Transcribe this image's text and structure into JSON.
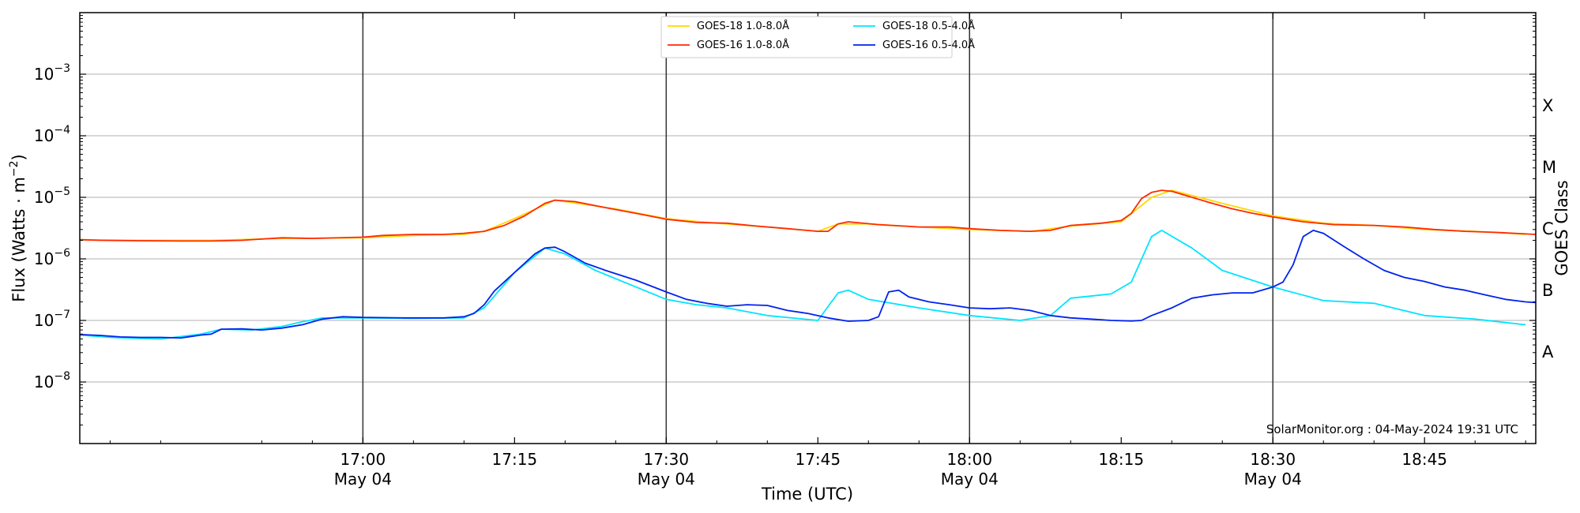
{
  "chart_data": {
    "type": "line",
    "xlabel": "Time (UTC)",
    "ylabel": "Flux (Watts · m",
    "ylabel_exp": "−2",
    "ylabel_close": ")",
    "y_scale": "log",
    "ylim": [
      1e-09,
      0.01
    ],
    "xlim": [
      "16:32",
      "18:56"
    ],
    "grid": "horizontal at decades",
    "legend_position": "top-center",
    "right_axis_label": "GOES Class",
    "goes_classes": [
      "X",
      "M",
      "C",
      "B",
      "A"
    ],
    "credit": "SolarMonitor.org : 04-May-2024 19:31 UTC",
    "x_ticks": [
      {
        "time": "17:00",
        "date": "May 04"
      },
      {
        "time": "17:15",
        "date": ""
      },
      {
        "time": "17:30",
        "date": "May 04"
      },
      {
        "time": "17:45",
        "date": ""
      },
      {
        "time": "18:00",
        "date": "May 04"
      },
      {
        "time": "18:15",
        "date": ""
      },
      {
        "time": "18:30",
        "date": "May 04"
      },
      {
        "time": "18:45",
        "date": ""
      }
    ],
    "y_ticks": [
      {
        "base": "10",
        "exp": "−8"
      },
      {
        "base": "10",
        "exp": "−7"
      },
      {
        "base": "10",
        "exp": "−6"
      },
      {
        "base": "10",
        "exp": "−5"
      },
      {
        "base": "10",
        "exp": "−4"
      },
      {
        "base": "10",
        "exp": "−3"
      }
    ],
    "series": [
      {
        "name": "GOES-18 1.0-8.0Å",
        "color": "#ffd700",
        "points": [
          [
            "16:32",
            2.05e-06
          ],
          [
            "16:38",
            2e-06
          ],
          [
            "16:45",
            2e-06
          ],
          [
            "16:52",
            2.15e-06
          ],
          [
            "17:00",
            2.2e-06
          ],
          [
            "17:05",
            2.4e-06
          ],
          [
            "17:10",
            2.5e-06
          ],
          [
            "17:12",
            2.8e-06
          ],
          [
            "17:15",
            4.5e-06
          ],
          [
            "17:19",
            9e-06
          ],
          [
            "17:25",
            6.5e-06
          ],
          [
            "17:30",
            4.5e-06
          ],
          [
            "17:35",
            3.8e-06
          ],
          [
            "17:40",
            3.3e-06
          ],
          [
            "17:45",
            2.8e-06
          ],
          [
            "17:47",
            3.7e-06
          ],
          [
            "17:50",
            3.7e-06
          ],
          [
            "17:55",
            3.3e-06
          ],
          [
            "18:00",
            3e-06
          ],
          [
            "18:06",
            2.8e-06
          ],
          [
            "18:10",
            3.4e-06
          ],
          [
            "18:15",
            4e-06
          ],
          [
            "18:18",
            1e-05
          ],
          [
            "18:20",
            1.3e-05
          ],
          [
            "18:25",
            8e-06
          ],
          [
            "18:30",
            5e-06
          ],
          [
            "18:35",
            3.8e-06
          ],
          [
            "18:40",
            3.5e-06
          ],
          [
            "18:45",
            3e-06
          ],
          [
            "18:50",
            2.8e-06
          ],
          [
            "18:55",
            2.5e-06
          ]
        ]
      },
      {
        "name": "GOES-16 1.0-8.0Å",
        "color": "#ff2a00",
        "points": [
          [
            "16:32",
            2.05e-06
          ],
          [
            "16:34",
            2e-06
          ],
          [
            "16:38",
            1.97e-06
          ],
          [
            "16:42",
            1.95e-06
          ],
          [
            "16:45",
            1.95e-06
          ],
          [
            "16:48",
            2e-06
          ],
          [
            "16:50",
            2.1e-06
          ],
          [
            "16:52",
            2.2e-06
          ],
          [
            "16:55",
            2.15e-06
          ],
          [
            "17:00",
            2.25e-06
          ],
          [
            "17:02",
            2.4e-06
          ],
          [
            "17:05",
            2.5e-06
          ],
          [
            "17:08",
            2.5e-06
          ],
          [
            "17:10",
            2.6e-06
          ],
          [
            "17:12",
            2.8e-06
          ],
          [
            "17:14",
            3.5e-06
          ],
          [
            "17:16",
            5e-06
          ],
          [
            "17:18",
            8e-06
          ],
          [
            "17:19",
            9e-06
          ],
          [
            "17:21",
            8.5e-06
          ],
          [
            "17:24",
            6.8e-06
          ],
          [
            "17:27",
            5.5e-06
          ],
          [
            "17:30",
            4.4e-06
          ],
          [
            "17:33",
            3.9e-06
          ],
          [
            "17:36",
            3.8e-06
          ],
          [
            "17:39",
            3.4e-06
          ],
          [
            "17:42",
            3.1e-06
          ],
          [
            "17:45",
            2.8e-06
          ],
          [
            "17:46",
            2.8e-06
          ],
          [
            "17:47",
            3.7e-06
          ],
          [
            "17:48",
            4e-06
          ],
          [
            "17:51",
            3.6e-06
          ],
          [
            "17:55",
            3.3e-06
          ],
          [
            "17:58",
            3.3e-06
          ],
          [
            "18:00",
            3.1e-06
          ],
          [
            "18:03",
            2.9e-06
          ],
          [
            "18:06",
            2.8e-06
          ],
          [
            "18:08",
            2.9e-06
          ],
          [
            "18:10",
            3.5e-06
          ],
          [
            "18:13",
            3.8e-06
          ],
          [
            "18:15",
            4.2e-06
          ],
          [
            "18:16",
            5.5e-06
          ],
          [
            "18:17",
            9.5e-06
          ],
          [
            "18:18",
            1.2e-05
          ],
          [
            "18:19",
            1.3e-05
          ],
          [
            "18:20",
            1.25e-05
          ],
          [
            "18:22",
            1e-05
          ],
          [
            "18:24",
            8e-06
          ],
          [
            "18:26",
            6.5e-06
          ],
          [
            "18:28",
            5.5e-06
          ],
          [
            "18:30",
            4.8e-06
          ],
          [
            "18:33",
            4e-06
          ],
          [
            "18:36",
            3.6e-06
          ],
          [
            "18:40",
            3.5e-06
          ],
          [
            "18:43",
            3.3e-06
          ],
          [
            "18:46",
            3e-06
          ],
          [
            "18:49",
            2.8e-06
          ],
          [
            "18:52",
            2.7e-06
          ],
          [
            "18:56",
            2.5e-06
          ]
        ]
      },
      {
        "name": "GOES-18 0.5-4.0Å",
        "color": "#00e5ff",
        "points": [
          [
            "16:32",
            5.8e-08
          ],
          [
            "16:35",
            5.3e-08
          ],
          [
            "16:38",
            5.1e-08
          ],
          [
            "16:40",
            5e-08
          ],
          [
            "16:44",
            6e-08
          ],
          [
            "16:46",
            7.2e-08
          ],
          [
            "16:49",
            7e-08
          ],
          [
            "16:52",
            8e-08
          ],
          [
            "16:54",
            9.5e-08
          ],
          [
            "16:56",
            1.1e-07
          ],
          [
            "17:00",
            1.1e-07
          ],
          [
            "17:05",
            1.08e-07
          ],
          [
            "17:10",
            1.1e-07
          ],
          [
            "17:12",
            1.6e-07
          ],
          [
            "17:15",
            6e-07
          ],
          [
            "17:18",
            1.5e-06
          ],
          [
            "17:20",
            1.2e-06
          ],
          [
            "17:23",
            6.5e-07
          ],
          [
            "17:27",
            3.5e-07
          ],
          [
            "17:30",
            2.2e-07
          ],
          [
            "17:33",
            1.8e-07
          ],
          [
            "17:36",
            1.6e-07
          ],
          [
            "17:40",
            1.2e-07
          ],
          [
            "17:45",
            1e-07
          ],
          [
            "17:47",
            2.8e-07
          ],
          [
            "17:48",
            3.1e-07
          ],
          [
            "17:50",
            2.2e-07
          ],
          [
            "17:55",
            1.6e-07
          ],
          [
            "18:00",
            1.2e-07
          ],
          [
            "18:05",
            1e-07
          ],
          [
            "18:08",
            1.2e-07
          ],
          [
            "18:10",
            2.3e-07
          ],
          [
            "18:14",
            2.7e-07
          ],
          [
            "18:16",
            4.2e-07
          ],
          [
            "18:18",
            2.3e-06
          ],
          [
            "18:19",
            2.9e-06
          ],
          [
            "18:22",
            1.5e-06
          ],
          [
            "18:25",
            6.5e-07
          ],
          [
            "18:30",
            3.5e-07
          ],
          [
            "18:35",
            2.1e-07
          ],
          [
            "18:40",
            1.9e-07
          ],
          [
            "18:45",
            1.2e-07
          ],
          [
            "18:50",
            1.05e-07
          ],
          [
            "18:55",
            8.5e-08
          ]
        ]
      },
      {
        "name": "GOES-16 0.5-4.0Å",
        "color": "#0022ee",
        "points": [
          [
            "16:32",
            5.9e-08
          ],
          [
            "16:34",
            5.7e-08
          ],
          [
            "16:36",
            5.4e-08
          ],
          [
            "16:38",
            5.3e-08
          ],
          [
            "16:40",
            5.3e-08
          ],
          [
            "16:42",
            5.2e-08
          ],
          [
            "16:44",
            5.8e-08
          ],
          [
            "16:45",
            6e-08
          ],
          [
            "16:46",
            7.2e-08
          ],
          [
            "16:48",
            7.3e-08
          ],
          [
            "16:50",
            7e-08
          ],
          [
            "16:52",
            7.5e-08
          ],
          [
            "16:54",
            8.5e-08
          ],
          [
            "16:56",
            1.05e-07
          ],
          [
            "16:58",
            1.15e-07
          ],
          [
            "17:00",
            1.12e-07
          ],
          [
            "17:04",
            1.1e-07
          ],
          [
            "17:08",
            1.1e-07
          ],
          [
            "17:10",
            1.15e-07
          ],
          [
            "17:11",
            1.3e-07
          ],
          [
            "17:12",
            1.8e-07
          ],
          [
            "17:13",
            3e-07
          ],
          [
            "17:15",
            6e-07
          ],
          [
            "17:17",
            1.2e-06
          ],
          [
            "17:18",
            1.5e-06
          ],
          [
            "17:19",
            1.55e-06
          ],
          [
            "17:20",
            1.3e-06
          ],
          [
            "17:22",
            8.5e-07
          ],
          [
            "17:24",
            6.5e-07
          ],
          [
            "17:27",
            4.5e-07
          ],
          [
            "17:30",
            2.9e-07
          ],
          [
            "17:32",
            2.2e-07
          ],
          [
            "17:34",
            1.9e-07
          ],
          [
            "17:36",
            1.7e-07
          ],
          [
            "17:38",
            1.8e-07
          ],
          [
            "17:40",
            1.75e-07
          ],
          [
            "17:42",
            1.45e-07
          ],
          [
            "17:44",
            1.3e-07
          ],
          [
            "17:46",
            1.1e-07
          ],
          [
            "17:48",
            9.7e-08
          ],
          [
            "17:50",
            1e-07
          ],
          [
            "17:51",
            1.15e-07
          ],
          [
            "17:52",
            2.9e-07
          ],
          [
            "17:53",
            3.1e-07
          ],
          [
            "17:54",
            2.4e-07
          ],
          [
            "17:56",
            2e-07
          ],
          [
            "17:58",
            1.8e-07
          ],
          [
            "18:00",
            1.6e-07
          ],
          [
            "18:02",
            1.55e-07
          ],
          [
            "18:04",
            1.6e-07
          ],
          [
            "18:06",
            1.45e-07
          ],
          [
            "18:08",
            1.2e-07
          ],
          [
            "18:10",
            1.1e-07
          ],
          [
            "18:12",
            1.05e-07
          ],
          [
            "18:14",
            1e-07
          ],
          [
            "18:16",
            9.8e-08
          ],
          [
            "18:17",
            1e-07
          ],
          [
            "18:18",
            1.2e-07
          ],
          [
            "18:20",
            1.6e-07
          ],
          [
            "18:22",
            2.3e-07
          ],
          [
            "18:24",
            2.6e-07
          ],
          [
            "18:26",
            2.8e-07
          ],
          [
            "18:28",
            2.8e-07
          ],
          [
            "18:30",
            3.5e-07
          ],
          [
            "18:31",
            4.2e-07
          ],
          [
            "18:32",
            8e-07
          ],
          [
            "18:33",
            2.3e-06
          ],
          [
            "18:34",
            2.9e-06
          ],
          [
            "18:35",
            2.6e-06
          ],
          [
            "18:37",
            1.6e-06
          ],
          [
            "18:39",
            1e-06
          ],
          [
            "18:41",
            6.5e-07
          ],
          [
            "18:43",
            5e-07
          ],
          [
            "18:45",
            4.3e-07
          ],
          [
            "18:47",
            3.5e-07
          ],
          [
            "18:49",
            3.1e-07
          ],
          [
            "18:51",
            2.6e-07
          ],
          [
            "18:53",
            2.2e-07
          ],
          [
            "18:55",
            2e-07
          ],
          [
            "18:56",
            1.95e-07
          ]
        ]
      }
    ]
  }
}
